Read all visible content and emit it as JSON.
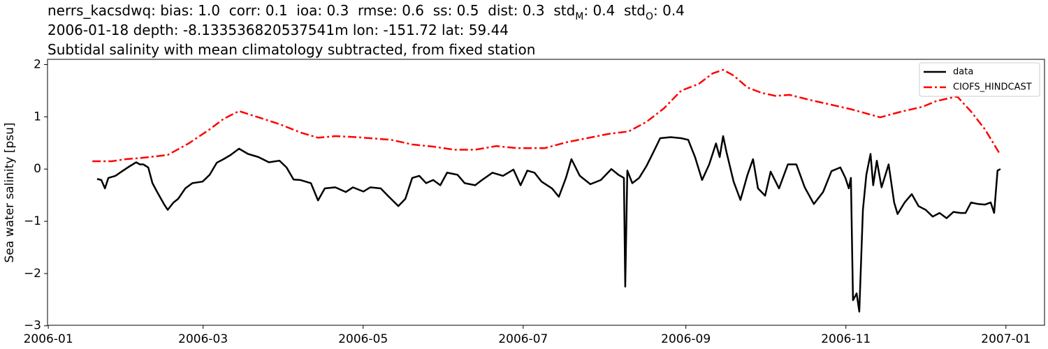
{
  "chart_data": {
    "type": "line",
    "title_lines": [
      [
        "nerrs_kacsdwq: bias: 1.0  corr: 0.1  ioa: 0.3  rmse: 0.6  ss: 0.5  dist: 0.3  std",
        "M",
        ": 0.4  std",
        "O",
        ": 0.4"
      ],
      [
        "2006-01-18 depth: -8.133536820537541m lon: -151.72 lat: 59.44"
      ],
      [
        "Subtidal salinity with mean climatology subtracted, from fixed station"
      ]
    ],
    "ylabel": "Sea water salinity [psu]",
    "xlim": [
      -0.3,
      379.7
    ],
    "xticks": [
      {
        "value": 0,
        "label": "2006-01"
      },
      {
        "value": 59,
        "label": "2006-03"
      },
      {
        "value": 120,
        "label": "2006-05"
      },
      {
        "value": 181,
        "label": "2006-07"
      },
      {
        "value": 243,
        "label": "2006-09"
      },
      {
        "value": 304,
        "label": "2006-11"
      },
      {
        "value": 365,
        "label": "2007-01"
      }
    ],
    "ylim": [
      -2.99,
      2.1
    ],
    "yticks": [
      {
        "value": -3,
        "label": "−3"
      },
      {
        "value": -2,
        "label": "−2"
      },
      {
        "value": -1,
        "label": "−1"
      },
      0,
      1,
      2
    ],
    "legend": "upper right",
    "series": [
      {
        "name": "data",
        "color": "#000000",
        "dash": "solid",
        "x": [
          18.6,
          20.2,
          21.6,
          22.9,
          25.6,
          28.2,
          30.9,
          33.5,
          34.9,
          36.2,
          38.1,
          39.7,
          41.5,
          44.2,
          45.5,
          47.7,
          49.5,
          52.2,
          54.9,
          58.8,
          61.5,
          64.2,
          66.8,
          69.5,
          72.7,
          76.1,
          80.1,
          84.1,
          88.1,
          90.8,
          93.5,
          96.1,
          100.1,
          102.8,
          105.4,
          109.4,
          113.4,
          116.1,
          120.1,
          122.7,
          126.7,
          129.4,
          133.4,
          136.1,
          138.7,
          141.4,
          144.0,
          146.7,
          149.4,
          152.0,
          156.0,
          158.7,
          162.7,
          165.3,
          169.3,
          173.3,
          177.3,
          180.0,
          182.6,
          185.3,
          188.0,
          192.0,
          194.6,
          197.3,
          199.4,
          202.6,
          206.6,
          210.6,
          214.6,
          217.3,
          219.4,
          219.9,
          220.7,
          222.6,
          225.2,
          227.9,
          230.6,
          233.2,
          237.2,
          241.2,
          243.9,
          246.5,
          249.2,
          251.9,
          254.5,
          255.9,
          257.2,
          258.5,
          261.2,
          263.8,
          266.5,
          268.6,
          270.5,
          273.2,
          275.3,
          278.5,
          281.9,
          285.1,
          288.3,
          291.8,
          295.3,
          298.5,
          301.9,
          303.8,
          305.1,
          305.9,
          306.7,
          308.1,
          309.1,
          310.5,
          311.8,
          313.4,
          314.4,
          315.8,
          317.6,
          320.3,
          322.4,
          323.7,
          326.4,
          329.1,
          331.7,
          334.4,
          337.1,
          339.7,
          342.4,
          345.0,
          347.7,
          349.6,
          351.7,
          354.4,
          357.0,
          359.2,
          360.5,
          361.8,
          362.9
        ],
        "values": [
          -0.19,
          -0.21,
          -0.37,
          -0.17,
          -0.13,
          -0.04,
          0.05,
          0.13,
          0.09,
          0.09,
          0.03,
          -0.27,
          -0.44,
          -0.68,
          -0.78,
          -0.64,
          -0.57,
          -0.37,
          -0.27,
          -0.24,
          -0.11,
          0.12,
          0.19,
          0.27,
          0.39,
          0.29,
          0.23,
          0.13,
          0.16,
          0.03,
          -0.2,
          -0.21,
          -0.27,
          -0.6,
          -0.37,
          -0.35,
          -0.44,
          -0.35,
          -0.43,
          -0.35,
          -0.37,
          -0.51,
          -0.71,
          -0.57,
          -0.17,
          -0.13,
          -0.27,
          -0.21,
          -0.31,
          -0.07,
          -0.11,
          -0.27,
          -0.31,
          -0.21,
          -0.07,
          -0.13,
          -0.01,
          -0.31,
          -0.03,
          -0.07,
          -0.24,
          -0.37,
          -0.53,
          -0.17,
          0.19,
          -0.13,
          -0.29,
          -0.21,
          0.0,
          -0.11,
          -0.17,
          -2.25,
          -0.03,
          -0.27,
          -0.17,
          0.05,
          0.32,
          0.59,
          0.61,
          0.59,
          0.56,
          0.23,
          -0.21,
          0.09,
          0.49,
          0.23,
          0.63,
          0.32,
          -0.24,
          -0.59,
          -0.11,
          0.19,
          -0.37,
          -0.51,
          -0.05,
          -0.37,
          0.09,
          0.09,
          -0.35,
          -0.67,
          -0.44,
          -0.04,
          0.03,
          -0.17,
          -0.37,
          -0.17,
          -2.51,
          -2.38,
          -2.73,
          -0.78,
          -0.11,
          0.29,
          -0.31,
          0.16,
          -0.35,
          0.09,
          -0.64,
          -0.86,
          -0.64,
          -0.48,
          -0.71,
          -0.78,
          -0.91,
          -0.84,
          -0.94,
          -0.82,
          -0.84,
          -0.84,
          -0.64,
          -0.67,
          -0.68,
          -0.64,
          -0.84,
          -0.03,
          0.0
        ]
      },
      {
        "name": "CIOFS_HINDCAST",
        "color": "#ff0000",
        "dash": "dashdot",
        "x": [
          16.8,
          24.2,
          29.6,
          34.9,
          45.5,
          53.5,
          61.5,
          66.8,
          72.7,
          80.1,
          88.1,
          96.1,
          102.8,
          109.4,
          117.4,
          122.7,
          130.7,
          138.7,
          146.7,
          154.7,
          162.7,
          170.7,
          178.6,
          189.3,
          197.3,
          205.3,
          213.3,
          221.2,
          227.9,
          234.6,
          241.2,
          247.9,
          253.2,
          257.2,
          261.2,
          266.5,
          271.8,
          277.2,
          282.5,
          290.5,
          298.5,
          306.4,
          317.1,
          325.1,
          333.1,
          338.4,
          346.4,
          351.7,
          357.0,
          362.9
        ],
        "values": [
          0.15,
          0.15,
          0.19,
          0.21,
          0.27,
          0.49,
          0.76,
          0.96,
          1.11,
          0.99,
          0.86,
          0.7,
          0.6,
          0.63,
          0.61,
          0.59,
          0.56,
          0.47,
          0.43,
          0.37,
          0.37,
          0.44,
          0.4,
          0.4,
          0.51,
          0.59,
          0.67,
          0.72,
          0.9,
          1.16,
          1.5,
          1.63,
          1.83,
          1.9,
          1.79,
          1.56,
          1.46,
          1.4,
          1.42,
          1.32,
          1.23,
          1.14,
          0.99,
          1.1,
          1.19,
          1.3,
          1.39,
          1.1,
          0.76,
          0.27
        ]
      }
    ]
  }
}
